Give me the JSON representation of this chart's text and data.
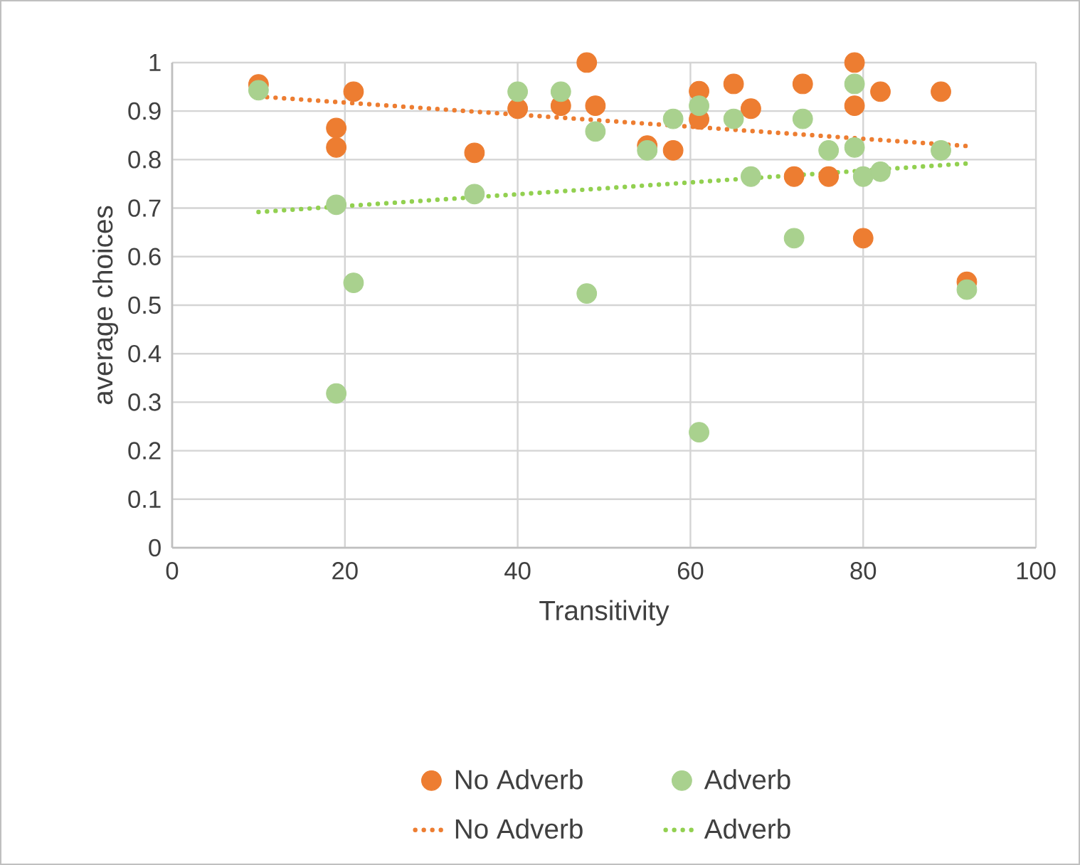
{
  "chart_data": {
    "type": "scatter",
    "xlabel": "Transitivity",
    "ylabel": "average choices",
    "xlim": [
      0,
      100
    ],
    "xticks": [
      0,
      20,
      40,
      60,
      80,
      100
    ],
    "ylim": [
      0,
      1
    ],
    "yticks": [
      0,
      0.1,
      0.2,
      0.3,
      0.4,
      0.5,
      0.6,
      0.7,
      0.8,
      0.9,
      1
    ],
    "grid": true,
    "legend": "bottom",
    "series": [
      {
        "name": "No Adverb",
        "marker": "circle",
        "color": "#ed7d31",
        "x": [
          10,
          19,
          19,
          21,
          35,
          40,
          45,
          48,
          49,
          55,
          58,
          61,
          61,
          65,
          67,
          72,
          73,
          76,
          79,
          79,
          80,
          82,
          89,
          92
        ],
        "values": [
          0.955,
          0.865,
          0.825,
          0.94,
          0.814,
          0.905,
          0.911,
          1.0,
          0.911,
          0.829,
          0.819,
          0.941,
          0.883,
          0.956,
          0.905,
          0.765,
          0.956,
          0.765,
          1.0,
          0.911,
          0.638,
          0.94,
          0.94,
          0.548
        ]
      },
      {
        "name": "Adverb",
        "marker": "circle",
        "color": "#a9d18e",
        "x": [
          10,
          19,
          21,
          19,
          35,
          40,
          45,
          48,
          49,
          55,
          58,
          61,
          61,
          65,
          67,
          72,
          73,
          76,
          79,
          79,
          80,
          82,
          89,
          92
        ],
        "values": [
          0.943,
          0.707,
          0.546,
          0.318,
          0.729,
          0.94,
          0.94,
          0.524,
          0.858,
          0.819,
          0.884,
          0.911,
          0.238,
          0.884,
          0.765,
          0.638,
          0.884,
          0.819,
          0.956,
          0.825,
          0.765,
          0.775,
          0.819,
          0.532
        ]
      },
      {
        "name": "No Adverb",
        "type": "line",
        "marker": "none",
        "line_style": "dotted",
        "color": "#ed7d31",
        "x": [
          10,
          92
        ],
        "values": [
          0.93,
          0.828
        ]
      },
      {
        "name": "Adverb",
        "type": "line",
        "marker": "none",
        "line_style": "dotted",
        "color": "#92d050",
        "x": [
          10,
          92
        ],
        "values": [
          0.692,
          0.792
        ]
      }
    ]
  }
}
